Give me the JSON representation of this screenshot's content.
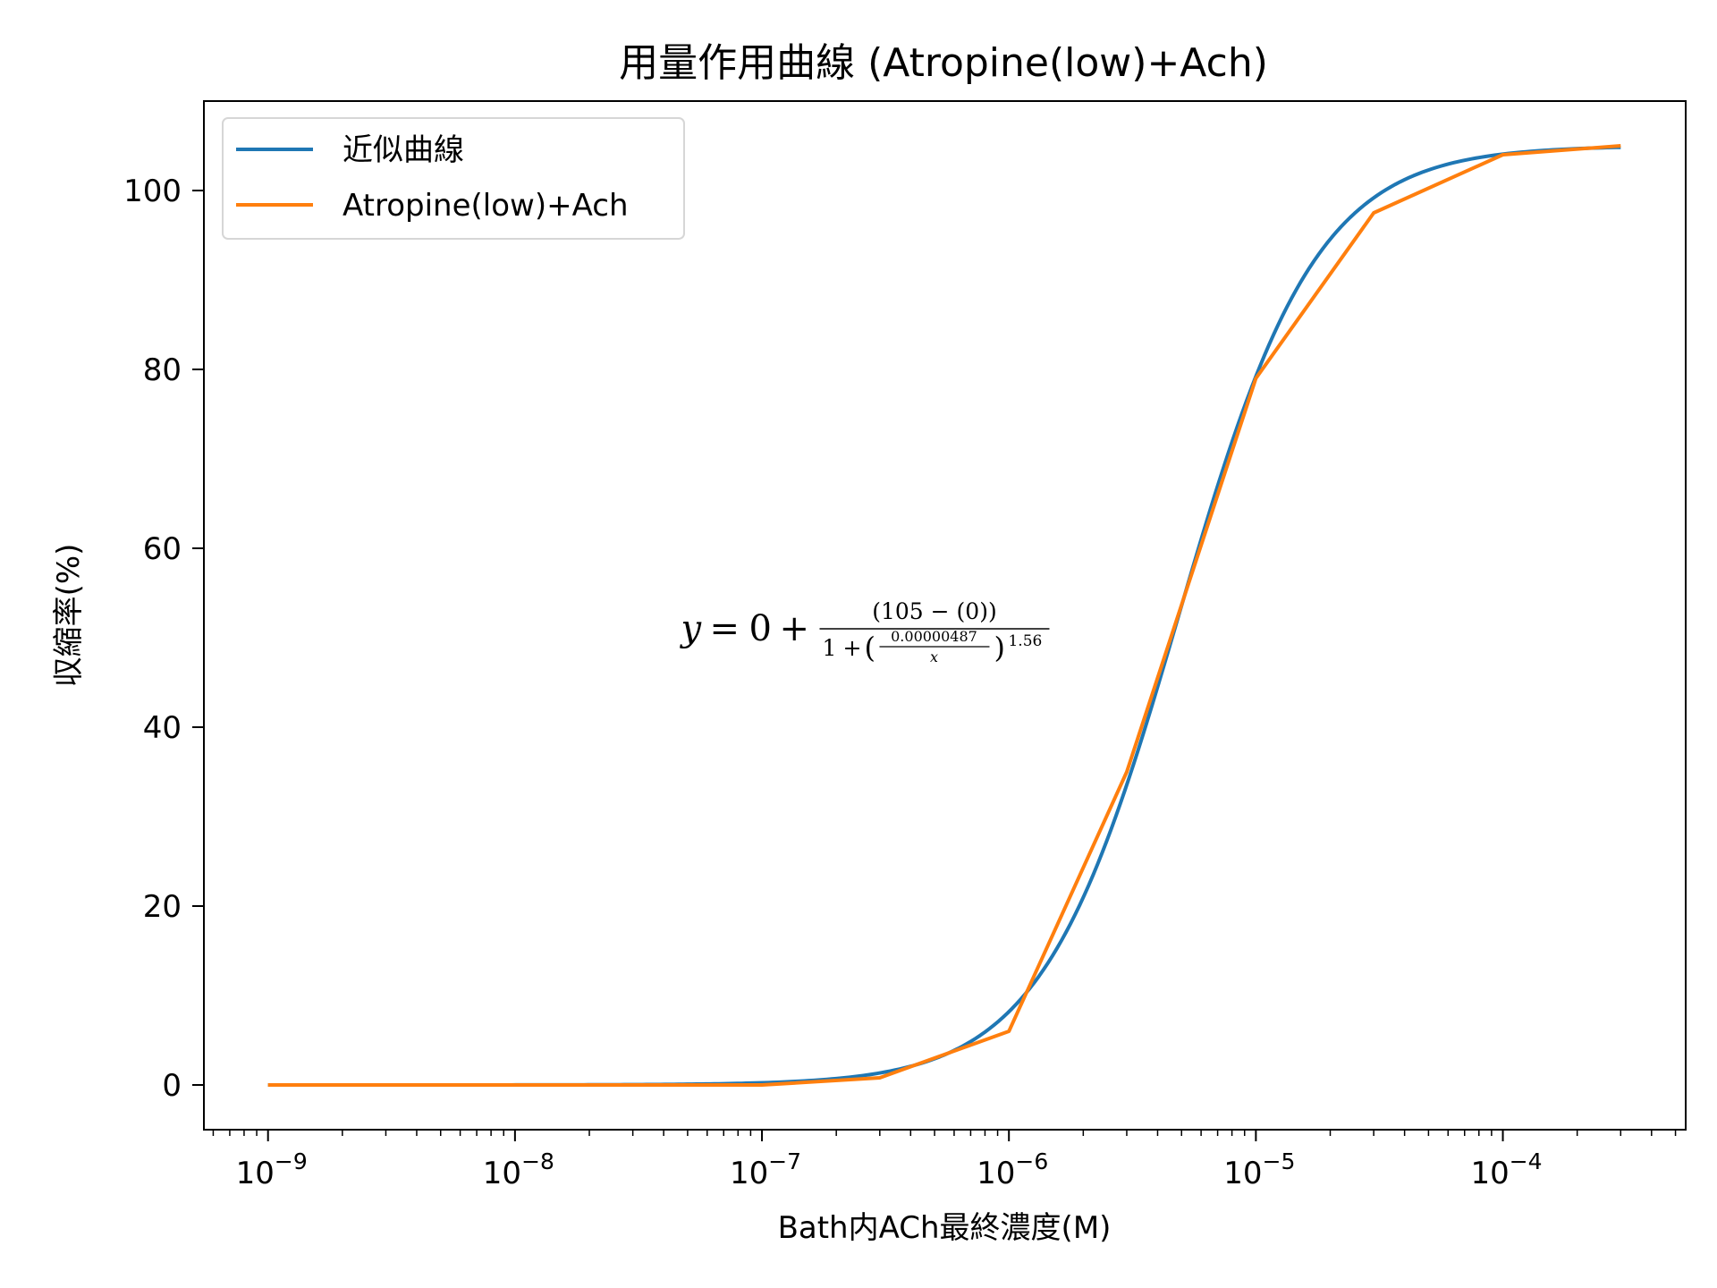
{
  "chart_data": {
    "type": "line",
    "title": "用量作用曲線 (Atropine(low)+Ach)",
    "xlabel": "Bath内ACh最終濃度(M)",
    "ylabel": "収縮率(%)",
    "xscale": "log",
    "xlim": [
      5.5e-10,
      0.00055
    ],
    "ylim": [
      -5,
      110
    ],
    "grid": false,
    "legend_position": "top-left",
    "x_ticks": [
      {
        "value": 1e-09,
        "label": "10^-9"
      },
      {
        "value": 1e-08,
        "label": "10^-8"
      },
      {
        "value": 1e-07,
        "label": "10^-7"
      },
      {
        "value": 1e-06,
        "label": "10^-6"
      },
      {
        "value": 1e-05,
        "label": "10^-5"
      },
      {
        "value": 0.0001,
        "label": "10^-4"
      }
    ],
    "y_ticks": [
      0,
      20,
      40,
      60,
      80,
      100
    ],
    "series": [
      {
        "name": "近似曲線",
        "color": "#1f77b4",
        "kind": "fit",
        "model": {
          "bottom": 0,
          "top": 105,
          "ec50": 4.87e-06,
          "hill": 1.56
        },
        "x_range": [
          1e-09,
          0.0003
        ]
      },
      {
        "name": "Atropine(low)+Ach",
        "color": "#ff7f0e",
        "kind": "data",
        "x": [
          1e-09,
          1e-07,
          3e-07,
          1e-06,
          3e-06,
          1e-05,
          3e-05,
          0.0001,
          0.0003
        ],
        "y": [
          0,
          0,
          0.8,
          6,
          35,
          79,
          97.5,
          104,
          105
        ]
      }
    ],
    "annotation": {
      "lhs": "y",
      "eq": "=",
      "zero": "0",
      "plus": "+",
      "numerator": "(105 − (0))",
      "denom_one": "1",
      "denom_plus": "+",
      "frac_num": "0.00000487",
      "frac_den": "x",
      "exponent": "1.56",
      "anchor_x": 4.7e-08,
      "anchor_y": 51
    }
  }
}
